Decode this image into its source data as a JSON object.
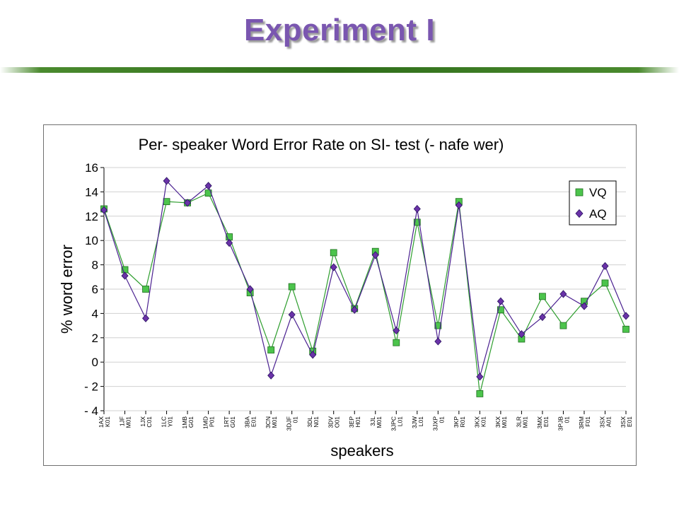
{
  "slide": {
    "title": "Experiment I"
  },
  "chart_data": {
    "type": "line",
    "title": "Per- speaker Word Error Rate on SI- test  (- nafe wer)",
    "xlabel": "speakers",
    "ylabel": "% word error",
    "ylim": [
      -4,
      16
    ],
    "yticks": [
      16,
      14,
      12,
      10,
      8,
      6,
      4,
      2,
      0,
      -2,
      -4
    ],
    "ytick_labels": [
      "16",
      "14",
      "12",
      "10",
      "8",
      "6",
      "4",
      "2",
      "0",
      "- 2",
      "- 4"
    ],
    "legend_position": "top-right",
    "categories": [
      "1AXK01",
      "1JFM01",
      "1JXC01",
      "1LCY01",
      "1MBG01",
      "1MDP01",
      "1RTG01",
      "3BAE01",
      "3CNM01",
      "3DJF01",
      "3DLN01",
      "3DVO01",
      "3EPH01",
      "3JLM01",
      "3JPCL01",
      "3JWL01",
      "3JXP01",
      "3KPR01",
      "3KXK01",
      "3KXM01",
      "3LRM01",
      "3MXE01",
      "3PJB01",
      "3RMF01",
      "3SXA01",
      "3SXE01"
    ],
    "tick_labels": [
      [
        "1AX",
        "K01"
      ],
      [
        "1JF",
        "M01"
      ],
      [
        "1JX",
        "C01"
      ],
      [
        "1LC",
        "Y01"
      ],
      [
        "1MB",
        "G01"
      ],
      [
        "1MD",
        "P01"
      ],
      [
        "1RT",
        "G01"
      ],
      [
        "3BA",
        "E01"
      ],
      [
        "3CN",
        "M01"
      ],
      [
        "3DJF",
        "01"
      ],
      [
        "3DL",
        "N01"
      ],
      [
        "3DV",
        "O01"
      ],
      [
        "3EP",
        "H01"
      ],
      [
        "3JL",
        "M01"
      ],
      [
        "3JPC",
        "L01"
      ],
      [
        "3JW",
        "L01"
      ],
      [
        "3JXP",
        "01"
      ],
      [
        "3KP",
        "R01"
      ],
      [
        "3KX",
        "K01"
      ],
      [
        "3KX",
        "M01"
      ],
      [
        "3LR",
        "M01"
      ],
      [
        "3MX",
        "E01"
      ],
      [
        "3PJB",
        "01"
      ],
      [
        "3RM",
        "F01"
      ],
      [
        "3SX",
        "A01"
      ],
      [
        "3SX",
        "E01"
      ]
    ],
    "series": [
      {
        "name": "VQ",
        "color": "#4cc44c",
        "line_color": "#2e9e2e",
        "marker": "square",
        "values": [
          12.6,
          7.6,
          6.0,
          13.2,
          13.1,
          13.9,
          10.3,
          5.7,
          1.0,
          6.2,
          0.9,
          9.0,
          4.4,
          9.1,
          1.6,
          11.5,
          3.0,
          13.2,
          -2.6,
          4.3,
          1.9,
          5.4,
          3.0,
          5.0,
          6.5,
          2.7
        ]
      },
      {
        "name": "AQ",
        "color": "#6a32a8",
        "line_color": "#4a2090",
        "marker": "diamond",
        "values": [
          12.5,
          7.1,
          3.6,
          14.9,
          13.1,
          14.5,
          9.8,
          6.0,
          -1.1,
          3.9,
          0.6,
          7.8,
          4.3,
          8.8,
          2.6,
          12.6,
          1.7,
          12.9,
          -1.2,
          5.0,
          2.3,
          3.7,
          5.6,
          4.6,
          7.9,
          3.8
        ]
      }
    ]
  }
}
